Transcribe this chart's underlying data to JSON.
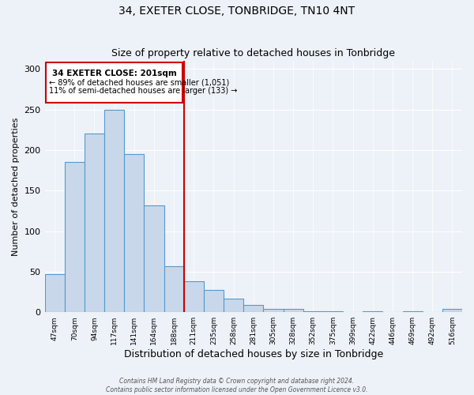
{
  "title": "34, EXETER CLOSE, TONBRIDGE, TN10 4NT",
  "subtitle": "Size of property relative to detached houses in Tonbridge",
  "xlabel": "Distribution of detached houses by size in Tonbridge",
  "ylabel": "Number of detached properties",
  "bar_labels": [
    "47sqm",
    "70sqm",
    "94sqm",
    "117sqm",
    "141sqm",
    "164sqm",
    "188sqm",
    "211sqm",
    "235sqm",
    "258sqm",
    "281sqm",
    "305sqm",
    "328sqm",
    "352sqm",
    "375sqm",
    "399sqm",
    "422sqm",
    "446sqm",
    "469sqm",
    "492sqm",
    "516sqm"
  ],
  "bar_values": [
    47,
    185,
    220,
    250,
    195,
    132,
    57,
    38,
    27,
    17,
    9,
    4,
    4,
    1,
    1,
    0,
    1,
    0,
    1,
    0,
    4
  ],
  "bar_color": "#c8d8ea",
  "bar_edgecolor": "#5599cc",
  "annotation_title": "34 EXETER CLOSE: 201sqm",
  "annotation_line1": "← 89% of detached houses are smaller (1,051)",
  "annotation_line2": "11% of semi-detached houses are larger (133) →",
  "vline_x": 6.5,
  "vline_color": "#cc0000",
  "annotation_box_edgecolor": "#cc0000",
  "ylim": [
    0,
    310
  ],
  "yticks": [
    0,
    50,
    100,
    150,
    200,
    250,
    300
  ],
  "footer1": "Contains HM Land Registry data © Crown copyright and database right 2024.",
  "footer2": "Contains public sector information licensed under the Open Government Licence v3.0.",
  "bg_color": "#edf2f8"
}
